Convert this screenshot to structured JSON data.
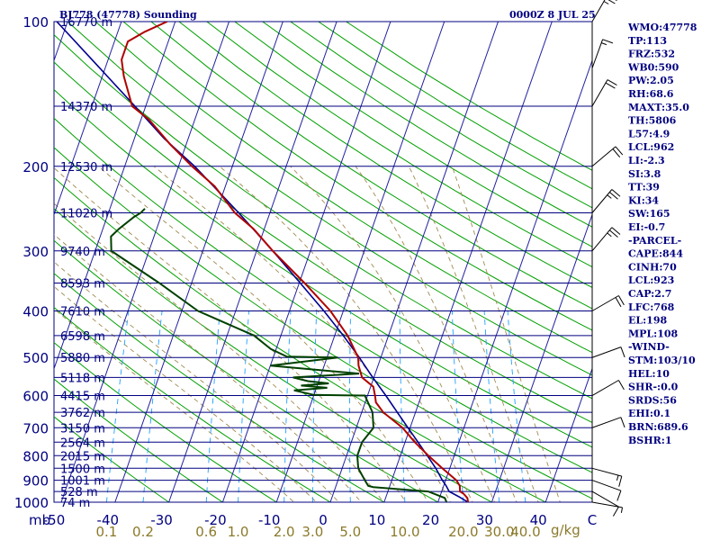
{
  "header": {
    "title": "BJ778 (47778) Sounding",
    "datetime": "0000Z  8 JUL 25"
  },
  "units": {
    "pressure": "mb",
    "mixing_ratio": "g/kg"
  },
  "chart_data": {
    "type": "line",
    "title": "BJ778 (47778) Sounding",
    "xlabel": "",
    "ylabel": "mb",
    "x_range": [
      -50,
      50
    ],
    "y_range": [
      1000,
      100
    ],
    "y_scale": "log",
    "pressure_ticks": [
      "100",
      "200",
      "300",
      "400",
      "500",
      "600",
      "700",
      "800",
      "900",
      "1000"
    ],
    "temperature_ticks": [
      "-50",
      "-40",
      "-30",
      "-20",
      "-10",
      "0",
      "10",
      "20",
      "30",
      "40",
      "C"
    ],
    "mixing_ratio_ticks": [
      "0.1",
      "0.2",
      "0.6",
      "1.0",
      "2.0",
      "3.0",
      "5.0",
      "10.0",
      "20.0",
      "30.0",
      "40.0"
    ],
    "height_labels": [
      {
        "p": 100,
        "label": "16770 m"
      },
      {
        "p": 150,
        "label": "14370 m"
      },
      {
        "p": 200,
        "label": "12530 m"
      },
      {
        "p": 250,
        "label": "11020 m"
      },
      {
        "p": 300,
        "label": "9740 m"
      },
      {
        "p": 350,
        "label": "8593 m"
      },
      {
        "p": 400,
        "label": "7610 m"
      },
      {
        "p": 450,
        "label": "6598 m"
      },
      {
        "p": 500,
        "label": "5880 m"
      },
      {
        "p": 550,
        "label": "5118 m"
      },
      {
        "p": 600,
        "label": "4415 m"
      },
      {
        "p": 650,
        "label": "3762 m"
      },
      {
        "p": 700,
        "label": "3150 m"
      },
      {
        "p": 750,
        "label": "2564 m"
      },
      {
        "p": 800,
        "label": "2015 m"
      },
      {
        "p": 850,
        "label": "1500 m"
      },
      {
        "p": 900,
        "label": "1001 m"
      },
      {
        "p": 950,
        "label": "528 m"
      },
      {
        "p": 1000,
        "label": "74 m"
      }
    ],
    "series": [
      {
        "key": "temperature",
        "color": "#b00000",
        "points": [
          [
            1000,
            25.6
          ],
          [
            980,
            25.2
          ],
          [
            960,
            24.2
          ],
          [
            950,
            23.4
          ],
          [
            925,
            23.0
          ],
          [
            900,
            22.0
          ],
          [
            850,
            18.6
          ],
          [
            800,
            15.2
          ],
          [
            750,
            11.8
          ],
          [
            700,
            8.6
          ],
          [
            650,
            4.0
          ],
          [
            620,
            2.0
          ],
          [
            600,
            1.4
          ],
          [
            575,
            0.5
          ],
          [
            550,
            -2.2
          ],
          [
            520,
            -3.6
          ],
          [
            500,
            -4.2
          ],
          [
            450,
            -7.6
          ],
          [
            400,
            -12.4
          ],
          [
            350,
            -19.0
          ],
          [
            300,
            -27.0
          ],
          [
            270,
            -32.0
          ],
          [
            250,
            -36.5
          ],
          [
            220,
            -42.0
          ],
          [
            200,
            -47.5
          ],
          [
            180,
            -53.0
          ],
          [
            160,
            -58.5
          ],
          [
            150,
            -62.5
          ],
          [
            130,
            -66.0
          ],
          [
            120,
            -67.5
          ],
          [
            110,
            -67.5
          ],
          [
            105,
            -65.0
          ],
          [
            100,
            -61.5
          ]
        ]
      },
      {
        "key": "dewpoint",
        "color": "#004000",
        "points": [
          [
            1000,
            21.6
          ],
          [
            980,
            21.0
          ],
          [
            950,
            17.5
          ],
          [
            930,
            7.0
          ],
          [
            925,
            6.0
          ],
          [
            900,
            5.0
          ],
          [
            850,
            3.0
          ],
          [
            800,
            2.0
          ],
          [
            750,
            2.0
          ],
          [
            700,
            3.2
          ],
          [
            650,
            2.0
          ],
          [
            600,
            -0.5
          ],
          [
            598,
            -10.0
          ],
          [
            585,
            -14.0
          ],
          [
            578,
            -8.0
          ],
          [
            572,
            -13.0
          ],
          [
            566,
            -8.0
          ],
          [
            560,
            -12.0
          ],
          [
            550,
            -15.0
          ],
          [
            540,
            -3.0
          ],
          [
            520,
            -20.0
          ],
          [
            500,
            -8.0
          ],
          [
            498,
            -17.5
          ],
          [
            480,
            -21.0
          ],
          [
            450,
            -25.0
          ],
          [
            400,
            -37.0
          ],
          [
            350,
            -46.0
          ],
          [
            300,
            -57.0
          ],
          [
            280,
            -58.0
          ],
          [
            270,
            -57.0
          ],
          [
            255,
            -55.0
          ],
          [
            250,
            -54.0
          ],
          [
            245,
            -53.5
          ]
        ]
      },
      {
        "key": "parcel",
        "color": "#000090",
        "points": [
          [
            1000,
            25.6
          ],
          [
            975,
            23.6
          ],
          [
            950,
            21.4
          ],
          [
            923,
            20.4
          ],
          [
            900,
            19.4
          ],
          [
            850,
            17.4
          ],
          [
            800,
            15.0
          ],
          [
            750,
            12.4
          ],
          [
            700,
            9.6
          ],
          [
            650,
            6.6
          ],
          [
            600,
            3.4
          ],
          [
            550,
            -0.2
          ],
          [
            500,
            -4.0
          ],
          [
            450,
            -8.4
          ],
          [
            400,
            -13.6
          ],
          [
            350,
            -19.8
          ],
          [
            300,
            -27.0
          ],
          [
            250,
            -35.8
          ],
          [
            200,
            -47.0
          ],
          [
            175,
            -54.5
          ],
          [
            150,
            -62.0
          ],
          [
            125,
            -71.0
          ],
          [
            100,
            -82.0
          ]
        ]
      }
    ],
    "winds_mb_dir_kt": [
      [
        1000,
        100,
        5
      ],
      [
        950,
        120,
        10
      ],
      [
        900,
        110,
        10
      ],
      [
        850,
        105,
        15
      ],
      [
        700,
        70,
        10
      ],
      [
        600,
        60,
        10
      ],
      [
        500,
        70,
        10
      ],
      [
        400,
        60,
        20
      ],
      [
        300,
        40,
        25
      ],
      [
        250,
        40,
        25
      ],
      [
        200,
        50,
        20
      ],
      [
        150,
        30,
        20
      ],
      [
        125,
        20,
        15
      ],
      [
        100,
        30,
        25
      ]
    ]
  },
  "indices": [
    "WMO:47778",
    "TP:113",
    "FRZ:532",
    "WB0:590",
    "PW:2.05",
    "RH:68.6",
    "MAXT:35.0",
    "TH:5806",
    "L57:4.9",
    "LCL:962",
    "LI:-2.3",
    "SI:3.8",
    "TT:39",
    "KI:34",
    "SW:165",
    "EI:-0.7",
    "-PARCEL-",
    "CAPE:844",
    "CINH:70",
    "LCL:923",
    "CAP:2.7",
    "LFC:768",
    "EL:198",
    "MPL:108",
    "-WIND-",
    "STM:103/10",
    "HEL:10",
    "SHR-:0.0",
    "SRDS:56",
    "EHI:0.1",
    "BRN:689.6",
    "BSHR:1"
  ],
  "colors": {
    "isobar": "#000080",
    "isotherm": "#2020a0",
    "dry_adiabat": "#00a000",
    "moist_adiabat": "#a08a50",
    "mixing_ratio": "#20a0ff",
    "temperature": "#b00000",
    "dewpoint": "#004000",
    "parcel": "#000090"
  }
}
